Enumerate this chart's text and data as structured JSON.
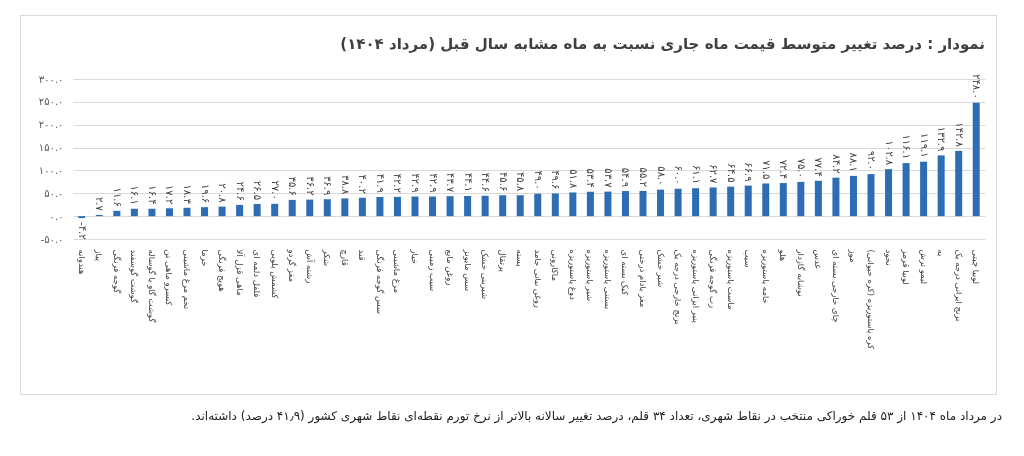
{
  "chart_data": {
    "type": "bar",
    "title": "نمودار : درصد تغییر متوسط قیمت ماه جاری نسبت به ماه مشابه سال قبل (مرداد ۱۴۰۴)",
    "categories": [
      "هندوانه",
      "پیاز",
      "گوجه فرنگی",
      "گوشت گوسفند",
      "گوشت گاو یا گوساله",
      "کنسرو ماهی تن",
      "تخم مرغ ماشینی",
      "خرما",
      "هویج فرنگی",
      "ماهی قزل آلا",
      "فلفل دلمه ای",
      "کشمش پلویی",
      "مغز گردو",
      "رشته آش",
      "شکر",
      "قارچ",
      "قند",
      "سس گوجه فرنگی",
      "مرغ ماشینی",
      "خیار",
      "سیب زمینی",
      "روغن مایع",
      "سس مایونز",
      "شیرینی خشک",
      "پرتقال",
      "پسته",
      "روغن نباتی جامد",
      "ماکارونی",
      "دوغ پاستوریزه",
      "شیر پاستوریزه",
      "بستنی پاستوریزه",
      "کیک بسته ای",
      "مغز بادام درختی",
      "شیر خشک",
      "برنج خارجی درجه یک",
      "پنیر ایرانی پاستوریزه",
      "رب گوجه فرنگی",
      "ماست پاستوریزه",
      "سیب",
      "خامه پاستوریزه",
      "هلو",
      "نوشابه گازدار",
      "عدس",
      "چای خارجی بسته ای",
      "موز",
      "کره پاستوریزه (کره حیوانی)",
      "نخود",
      "لوبیا قرمز",
      "لیمو ترش",
      "به",
      "برنج ایرانی درجه یک",
      "لوبیا چیتی"
    ],
    "values": [
      -4.2,
      2.7,
      11.6,
      16.1,
      16.4,
      17.2,
      18.3,
      19.6,
      20.8,
      24.6,
      26.5,
      27.0,
      35.6,
      36.2,
      36.9,
      38.8,
      40.2,
      41.9,
      42.2,
      42.9,
      42.9,
      43.7,
      44.1,
      44.6,
      45.6,
      45.8,
      49.0,
      49.6,
      51.8,
      53.4,
      53.7,
      54.9,
      55.2,
      58.0,
      60.0,
      61.1,
      62.7,
      64.5,
      66.9,
      71.5,
      72.4,
      75.0,
      77.4,
      84.2,
      88.1,
      92.0,
      102.8,
      116.1,
      119.1,
      132.9,
      142.8,
      248.0
    ],
    "value_labels": [
      "-۴.۲",
      "۲.۷",
      "۱۱.۶",
      "۱۶.۱",
      "۱۶.۴",
      "۱۷.۲",
      "۱۸.۳",
      "۱۹.۶",
      "۲۰.۸",
      "۲۴.۶",
      "۲۶.۵",
      "۲۷.۰",
      "۳۵.۶",
      "۳۶.۲",
      "۳۶.۹",
      "۳۸.۸",
      "۴۰.۲",
      "۴۱.۹",
      "۴۲.۲",
      "۴۲.۹",
      "۴۲.۹",
      "۴۳.۷",
      "۴۴.۱",
      "۴۴.۶",
      "۴۵.۶",
      "۴۵.۸",
      "۴۹.۰",
      "۴۹.۶",
      "۵۱.۸",
      "۵۳.۴",
      "۵۳.۷",
      "۵۴.۹",
      "۵۵.۲",
      "۵۸.۰",
      "۶۰.۰",
      "۶۱.۱",
      "۶۲.۷",
      "۶۴.۵",
      "۶۶.۹",
      "۷۱.۵",
      "۷۲.۴",
      "۷۵.۰",
      "۷۷.۴",
      "۸۴.۲",
      "۸۸.۱",
      "۹۲.۰",
      "۱۰۲.۸",
      "۱۱۶.۱",
      "۱۱۹.۱",
      "۱۳۲.۹",
      "۱۴۲.۸",
      "۲۴۸.۰"
    ],
    "color": "#2e6db4",
    "ylim": [
      -50,
      300
    ],
    "yticks": [
      {
        "value": -50,
        "label": "-۵۰.۰"
      },
      {
        "value": 0,
        "label": "۰.۰"
      },
      {
        "value": 50,
        "label": "۵۰.۰"
      },
      {
        "value": 100,
        "label": "۱۰۰.۰"
      },
      {
        "value": 150,
        "label": "۱۵۰.۰"
      },
      {
        "value": 200,
        "label": "۲۰۰.۰"
      },
      {
        "value": 250,
        "label": "۲۵۰.۰"
      },
      {
        "value": 300,
        "label": "۳۰۰.۰"
      }
    ],
    "grid": "y",
    "annotations": [
      "در مرداد ماه ۱۴۰۴ از ۵۳ قلم خوراکی منتخب در نقاط شهری، تعداد ۳۴ قلم، درصد تغییر سالانه بالاتر از نرخ تورم نقطه‌ای نقاط شهری کشور (۴۱٫۹ درصد) داشته‌اند."
    ]
  }
}
